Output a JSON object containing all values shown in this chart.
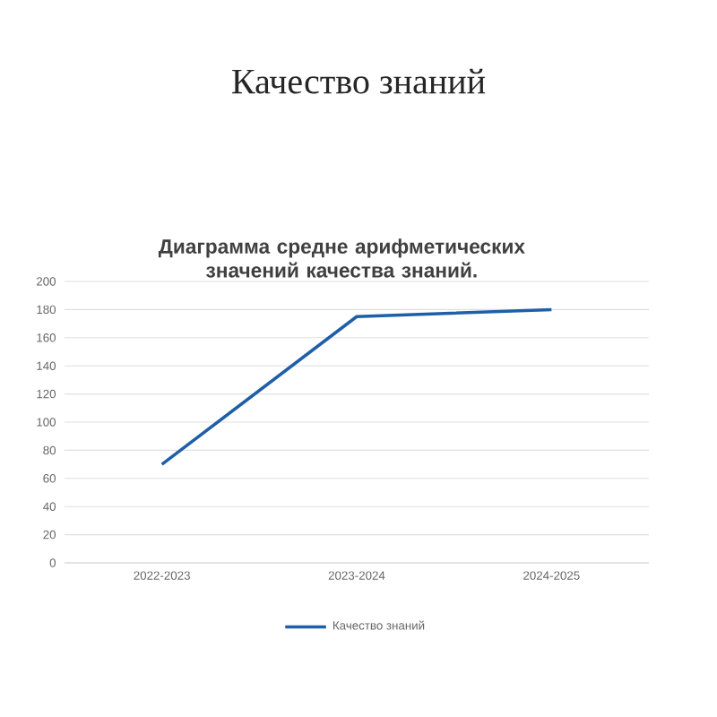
{
  "chart_data": {
    "type": "line",
    "title": "Качество знаний",
    "subtitle": "Диаграмма средне арифметических значений качества знаний.",
    "categories": [
      "2022-2023",
      "2023-2024",
      "2024-2025"
    ],
    "series": [
      {
        "name": "Качество знаний",
        "color": "#1f5fa8",
        "values": [
          70,
          175,
          180
        ]
      }
    ],
    "ylim": [
      0,
      200
    ],
    "yticks": [
      0,
      20,
      40,
      60,
      80,
      100,
      120,
      140,
      160,
      180,
      200
    ],
    "grid": "y",
    "legend": "bottom",
    "marker": "none",
    "line_style": "solid"
  }
}
